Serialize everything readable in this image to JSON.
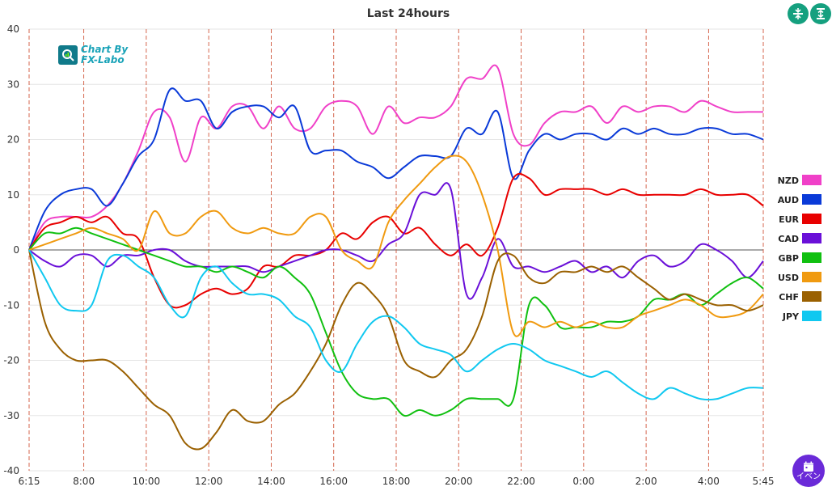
{
  "toolbar": {
    "compress_icon": "compress-vertical-icon",
    "expand_icon": "expand-vertical-icon",
    "event_label": "イベン",
    "event_icon": "calendar-icon"
  },
  "logo": {
    "line1": "Chart By",
    "line2": "FX-Labo"
  },
  "chart_data": {
    "type": "line",
    "title": "Last 24hours",
    "ylim": [
      -40,
      40
    ],
    "yticks": [
      40,
      30,
      20,
      10,
      0,
      -10,
      -20,
      -30,
      -40
    ],
    "x_ticks": [
      "6:15",
      "8:00",
      "10:00",
      "12:00",
      "14:00",
      "16:00",
      "18:00",
      "20:00",
      "22:00",
      "0:00",
      "2:00",
      "4:00",
      "5:45"
    ],
    "x_tick_hours": [
      0,
      1.75,
      3.75,
      5.75,
      7.75,
      9.75,
      11.75,
      13.75,
      15.75,
      17.75,
      19.75,
      21.75,
      23.5
    ],
    "x_range": [
      0,
      23.5
    ],
    "grid": true,
    "legend_placement": "right",
    "series": [
      {
        "name": "NZD",
        "color": "#f040c8",
        "x": [
          0,
          0.5,
          1,
          1.5,
          2,
          2.5,
          3,
          3.5,
          4,
          4.5,
          5,
          5.5,
          6,
          6.5,
          7,
          7.5,
          8,
          8.5,
          9,
          9.5,
          10,
          10.5,
          11,
          11.5,
          12,
          12.5,
          13,
          13.5,
          14,
          14.5,
          15,
          15.5,
          16,
          16.5,
          17,
          17.5,
          18,
          18.5,
          19,
          19.5,
          20,
          20.5,
          21,
          21.5,
          22,
          22.5,
          23,
          23.5
        ],
        "values": [
          0,
          5,
          6,
          6,
          6,
          8,
          12,
          18,
          25,
          24,
          16,
          24,
          22,
          26,
          26,
          22,
          26,
          22,
          22,
          26,
          27,
          26,
          21,
          26,
          23,
          24,
          24,
          26,
          31,
          31,
          33,
          21,
          19,
          23,
          25,
          25,
          26,
          23,
          26,
          25,
          26,
          26,
          25,
          27,
          26,
          25,
          25,
          25
        ]
      },
      {
        "name": "AUD",
        "color": "#0a3ad8",
        "x": [
          0,
          0.5,
          1,
          1.5,
          2,
          2.5,
          3,
          3.5,
          4,
          4.5,
          5,
          5.5,
          6,
          6.5,
          7,
          7.5,
          8,
          8.5,
          9,
          9.5,
          10,
          10.5,
          11,
          11.5,
          12,
          12.5,
          13,
          13.5,
          14,
          14.5,
          15,
          15.5,
          16,
          16.5,
          17,
          17.5,
          18,
          18.5,
          19,
          19.5,
          20,
          20.5,
          21,
          21.5,
          22,
          22.5,
          23,
          23.5
        ],
        "values": [
          0,
          7,
          10,
          11,
          11,
          8,
          12,
          17,
          20,
          29,
          27,
          27,
          22,
          25,
          26,
          26,
          24,
          26,
          18,
          18,
          18,
          16,
          15,
          13,
          15,
          17,
          17,
          17,
          22,
          21,
          25,
          13,
          18,
          21,
          20,
          21,
          21,
          20,
          22,
          21,
          22,
          21,
          21,
          22,
          22,
          21,
          21,
          20
        ]
      },
      {
        "name": "EUR",
        "color": "#e80000",
        "x": [
          0,
          0.5,
          1,
          1.5,
          2,
          2.5,
          3,
          3.5,
          4,
          4.5,
          5,
          5.5,
          6,
          6.5,
          7,
          7.5,
          8,
          8.5,
          9,
          9.5,
          10,
          10.5,
          11,
          11.5,
          12,
          12.5,
          13,
          13.5,
          14,
          14.5,
          15,
          15.5,
          16,
          16.5,
          17,
          17.5,
          18,
          18.5,
          19,
          19.5,
          20,
          20.5,
          21,
          21.5,
          22,
          22.5,
          23,
          23.5
        ],
        "values": [
          0,
          4,
          5,
          6,
          5,
          6,
          3,
          2,
          -5,
          -10,
          -10,
          -8,
          -7,
          -8,
          -7,
          -3,
          -3,
          -1,
          -1,
          0,
          3,
          2,
          5,
          6,
          3,
          4,
          1,
          -1,
          1,
          -1,
          4,
          13,
          13,
          10,
          11,
          11,
          11,
          10,
          11,
          10,
          10,
          10,
          10,
          11,
          10,
          10,
          10,
          8
        ]
      },
      {
        "name": "CAD",
        "color": "#6a10d8",
        "x": [
          0,
          0.5,
          1,
          1.5,
          2,
          2.5,
          3,
          3.5,
          4,
          4.5,
          5,
          5.5,
          6,
          6.5,
          7,
          7.5,
          8,
          8.5,
          9,
          9.5,
          10,
          10.5,
          11,
          11.5,
          12,
          12.5,
          13,
          13.5,
          14,
          14.5,
          15,
          15.5,
          16,
          16.5,
          17,
          17.5,
          18,
          18.5,
          19,
          19.5,
          20,
          20.5,
          21,
          21.5,
          22,
          22.5,
          23,
          23.5
        ],
        "values": [
          0,
          -2,
          -3,
          -1,
          -1,
          -3,
          -1,
          -1,
          0,
          0,
          -2,
          -3,
          -3,
          -3,
          -3,
          -4,
          -3,
          -2,
          -1,
          0,
          0,
          -1,
          -2,
          1,
          3,
          10,
          10,
          11,
          -8,
          -5,
          2,
          -3,
          -3,
          -4,
          -3,
          -2,
          -4,
          -3,
          -5,
          -2,
          -1,
          -3,
          -2,
          1,
          0,
          -2,
          -5,
          -2
        ]
      },
      {
        "name": "GBP",
        "color": "#10c010",
        "x": [
          0,
          0.5,
          1,
          1.5,
          2,
          2.5,
          3,
          3.5,
          4,
          4.5,
          5,
          5.5,
          6,
          6.5,
          7,
          7.5,
          8,
          8.5,
          9,
          9.5,
          10,
          10.5,
          11,
          11.5,
          12,
          12.5,
          13,
          13.5,
          14,
          14.5,
          15,
          15.5,
          16,
          16.5,
          17,
          17.5,
          18,
          18.5,
          19,
          19.5,
          20,
          20.5,
          21,
          21.5,
          22,
          22.5,
          23,
          23.5
        ],
        "values": [
          0,
          3,
          3,
          4,
          3,
          2,
          1,
          0,
          -1,
          -2,
          -3,
          -3,
          -4,
          -3,
          -4,
          -5,
          -3,
          -5,
          -8,
          -15,
          -22,
          -26,
          -27,
          -27,
          -30,
          -29,
          -30,
          -29,
          -27,
          -27,
          -27,
          -27,
          -10,
          -10,
          -14,
          -14,
          -14,
          -13,
          -13,
          -12,
          -9,
          -9,
          -8,
          -10,
          -8,
          -6,
          -5,
          -7
        ]
      },
      {
        "name": "USD",
        "color": "#f09a10",
        "x": [
          0,
          0.5,
          1,
          1.5,
          2,
          2.5,
          3,
          3.5,
          4,
          4.5,
          5,
          5.5,
          6,
          6.5,
          7,
          7.5,
          8,
          8.5,
          9,
          9.5,
          10,
          10.5,
          11,
          11.5,
          12,
          12.5,
          13,
          13.5,
          14,
          14.5,
          15,
          15.5,
          16,
          16.5,
          17,
          17.5,
          18,
          18.5,
          19,
          19.5,
          20,
          20.5,
          21,
          21.5,
          22,
          22.5,
          23,
          23.5
        ],
        "values": [
          0,
          1,
          2,
          3,
          4,
          3,
          2,
          0,
          7,
          3,
          3,
          6,
          7,
          4,
          3,
          4,
          3,
          3,
          6,
          6,
          0,
          -2,
          -3,
          5,
          9,
          12,
          15,
          17,
          16,
          10,
          0,
          -15,
          -13,
          -14,
          -13,
          -14,
          -13,
          -14,
          -14,
          -12,
          -11,
          -10,
          -9,
          -10,
          -12,
          -12,
          -11,
          -8
        ]
      },
      {
        "name": "CHF",
        "color": "#9a6000",
        "x": [
          0,
          0.5,
          1,
          1.5,
          2,
          2.5,
          3,
          3.5,
          4,
          4.5,
          5,
          5.5,
          6,
          6.5,
          7,
          7.5,
          8,
          8.5,
          9,
          9.5,
          10,
          10.5,
          11,
          11.5,
          12,
          12.5,
          13,
          13.5,
          14,
          14.5,
          15,
          15.5,
          16,
          16.5,
          17,
          17.5,
          18,
          18.5,
          19,
          19.5,
          20,
          20.5,
          21,
          21.5,
          22,
          22.5,
          23,
          23.5
        ],
        "values": [
          0,
          -13,
          -18,
          -20,
          -20,
          -20,
          -22,
          -25,
          -28,
          -30,
          -35,
          -36,
          -33,
          -29,
          -31,
          -31,
          -28,
          -26,
          -22,
          -17,
          -10,
          -6,
          -8,
          -12,
          -20,
          -22,
          -23,
          -20,
          -18,
          -12,
          -2,
          -1,
          -5,
          -6,
          -4,
          -4,
          -3,
          -4,
          -3,
          -5,
          -7,
          -9,
          -8,
          -9,
          -10,
          -10,
          -11,
          -10
        ]
      },
      {
        "name": "JPY",
        "color": "#10c8f0",
        "x": [
          0,
          0.5,
          1,
          1.5,
          2,
          2.5,
          3,
          3.5,
          4,
          4.5,
          5,
          5.5,
          6,
          6.5,
          7,
          7.5,
          8,
          8.5,
          9,
          9.5,
          10,
          10.5,
          11,
          11.5,
          12,
          12.5,
          13,
          13.5,
          14,
          14.5,
          15,
          15.5,
          16,
          16.5,
          17,
          17.5,
          18,
          18.5,
          19,
          19.5,
          20,
          20.5,
          21,
          21.5,
          22,
          22.5,
          23,
          23.5
        ],
        "values": [
          0,
          -5,
          -10,
          -11,
          -10,
          -2,
          -1,
          -3,
          -5,
          -10,
          -12,
          -5,
          -3,
          -6,
          -8,
          -8,
          -9,
          -12,
          -14,
          -20,
          -22,
          -17,
          -13,
          -12,
          -14,
          -17,
          -18,
          -19,
          -22,
          -20,
          -18,
          -17,
          -18,
          -20,
          -21,
          -22,
          -23,
          -22,
          -24,
          -26,
          -27,
          -25,
          -26,
          -27,
          -27,
          -26,
          -25,
          -25
        ]
      }
    ]
  }
}
